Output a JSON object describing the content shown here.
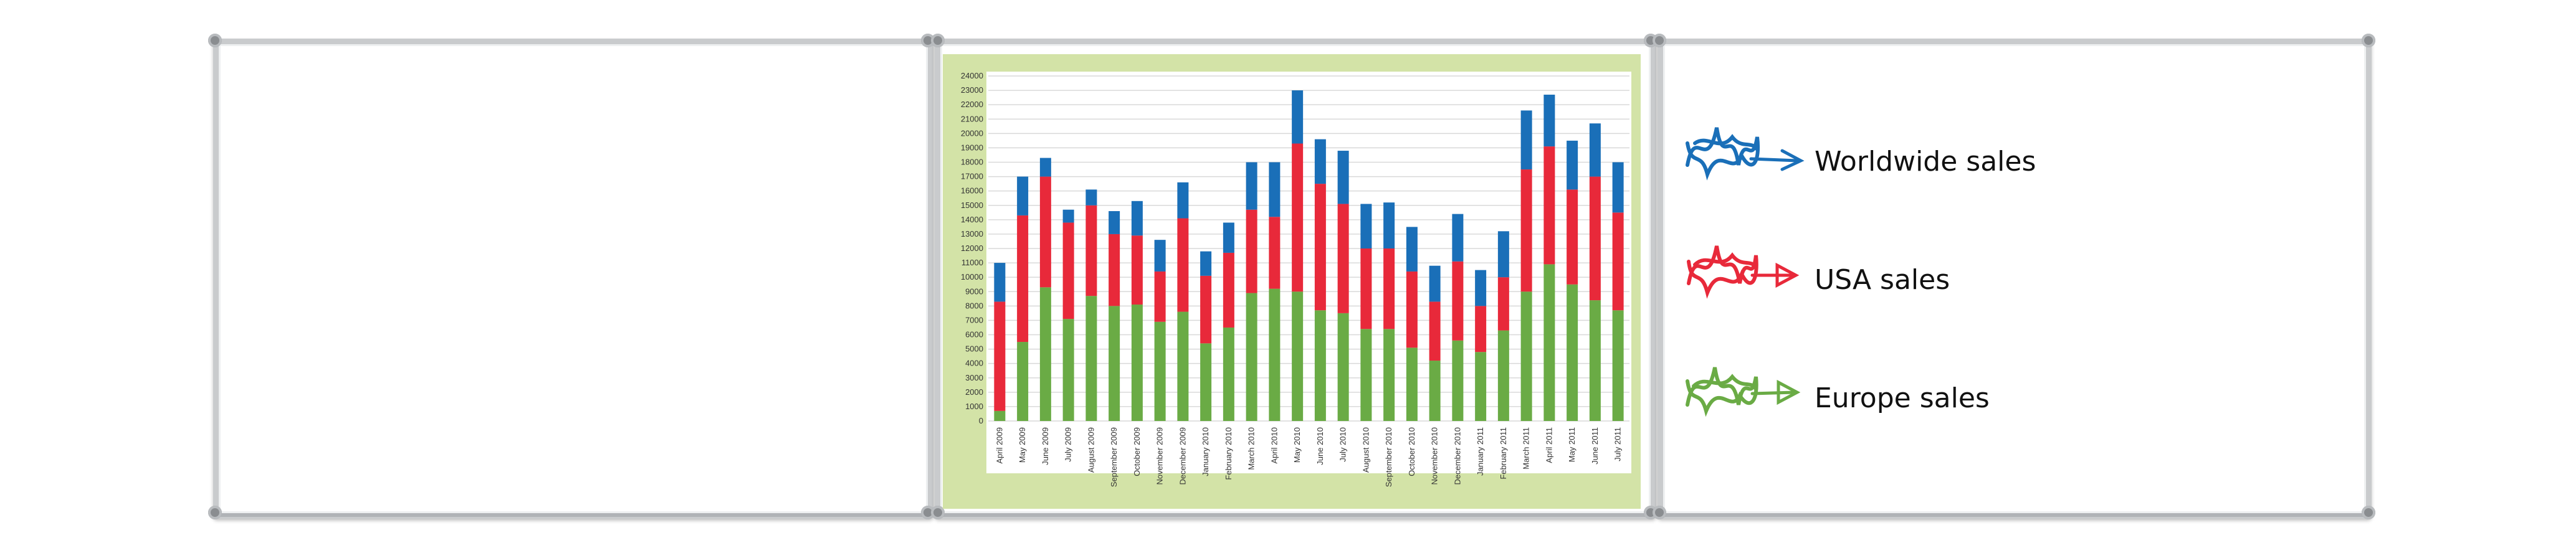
{
  "chart_data": {
    "type": "bar",
    "stacked": true,
    "title": "",
    "xlabel": "",
    "ylabel": "",
    "ylim": [
      0,
      24000
    ],
    "yticks": [
      0,
      1000,
      2000,
      3000,
      4000,
      5000,
      6000,
      7000,
      8000,
      9000,
      10000,
      11000,
      12000,
      13000,
      14000,
      15000,
      16000,
      17000,
      18000,
      19000,
      20000,
      21000,
      22000,
      23000,
      24000
    ],
    "grid": true,
    "legend": "right",
    "categories": [
      "April 2009",
      "May 2009",
      "June 2009",
      "July 2009",
      "August 2009",
      "September 2009",
      "October 2009",
      "November 2009",
      "December 2009",
      "January 2010",
      "February 2010",
      "March 2010",
      "April 2010",
      "May 2010",
      "June 2010",
      "July 2010",
      "August 2010",
      "September 2010",
      "October 2010",
      "November 2010",
      "December 2010",
      "January 2011",
      "February 2011",
      "March 2011",
      "April 2011",
      "May 2011",
      "June 2011",
      "July 2011"
    ],
    "series": [
      {
        "name": "Europe sales",
        "color": "#6aab45",
        "values": [
          700,
          5500,
          9300,
          7100,
          8700,
          8000,
          8100,
          6900,
          7600,
          5400,
          6500,
          8900,
          9200,
          9000,
          7700,
          7500,
          6400,
          6400,
          5100,
          4200,
          5600,
          4800,
          6300,
          9000,
          10900,
          9500,
          8400,
          7700
        ]
      },
      {
        "name": "USA sales",
        "color": "#e8293a",
        "values": [
          7600,
          8800,
          7700,
          6700,
          6300,
          5000,
          4800,
          3500,
          6500,
          4700,
          5200,
          5800,
          5000,
          10300,
          8800,
          7600,
          5600,
          5600,
          5300,
          4100,
          5500,
          3200,
          3700,
          8500,
          8200,
          6600,
          8600,
          6800
        ]
      },
      {
        "name": "Worldwide sales",
        "color": "#1a6fb8",
        "values": [
          2700,
          2700,
          1300,
          900,
          1100,
          1600,
          2400,
          2200,
          2500,
          1700,
          2100,
          3300,
          3800,
          3700,
          3100,
          3700,
          3100,
          3200,
          3100,
          2500,
          3300,
          2500,
          3200,
          4100,
          3600,
          3400,
          3700,
          3500
        ]
      }
    ]
  },
  "legend": {
    "items": [
      {
        "label": "Worldwide sales",
        "color": "#1a6fb8",
        "icon": "blue-scribble-arrow-icon"
      },
      {
        "label": "USA sales",
        "color": "#e8293a",
        "icon": "red-scribble-arrow-icon"
      },
      {
        "label": "Europe sales",
        "color": "#6aab45",
        "icon": "green-scribble-arrow-icon"
      }
    ]
  }
}
